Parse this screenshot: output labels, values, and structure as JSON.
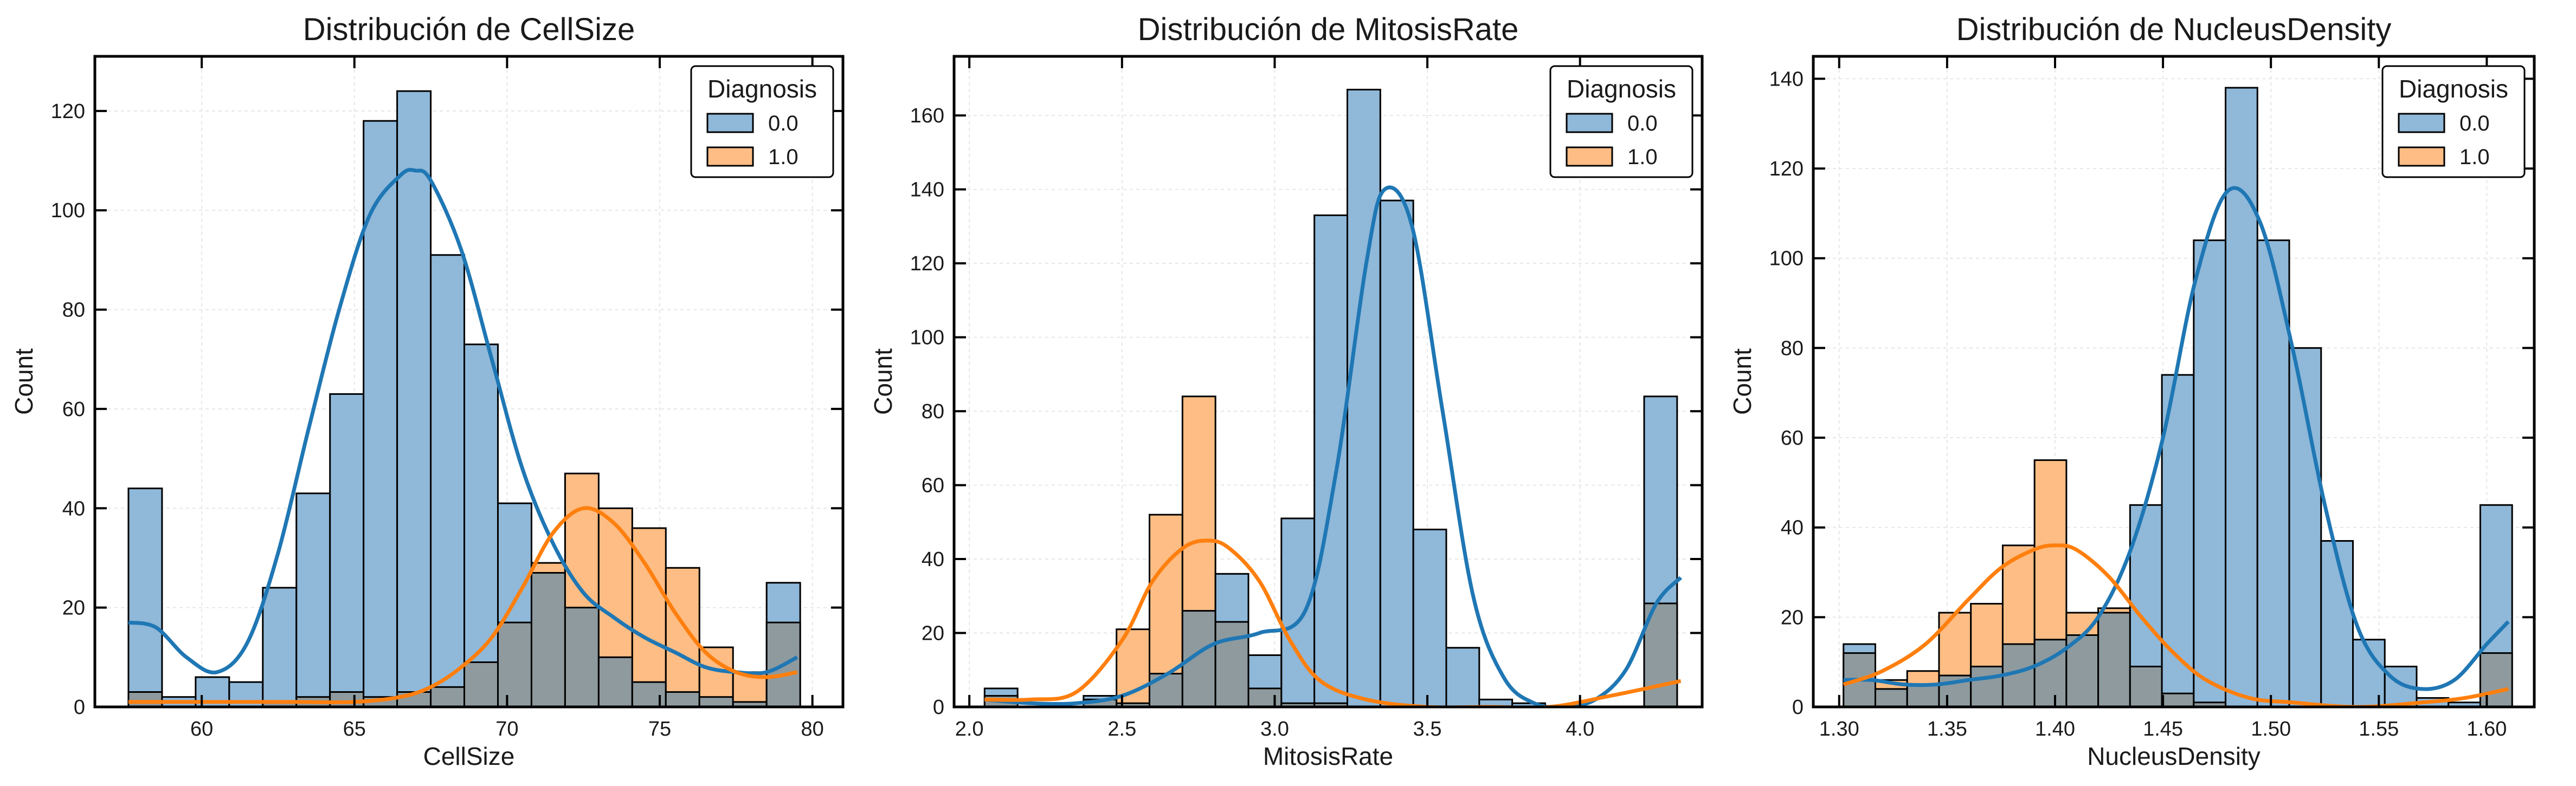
{
  "colors": {
    "class0_fill": "#8fb8d9",
    "class1_fill": "#fdbd84",
    "overlap_fill": "#8e9a9e",
    "class0_line": "#1f77b4",
    "class1_line": "#ff7f0e",
    "edge": "#000000",
    "grid": "#e6e6e6"
  },
  "chart_data": [
    {
      "type": "histogram",
      "title": "Distribución de CellSize",
      "xlabel": "CellSize",
      "ylabel": "Count",
      "xlim": [
        56.5,
        81
      ],
      "ylim": [
        0,
        131
      ],
      "xticks": [
        60,
        65,
        70,
        75,
        80
      ],
      "yticks": [
        0,
        20,
        40,
        60,
        80,
        100,
        120
      ],
      "grid": true,
      "legend": {
        "title": "Diagnosis",
        "entries": [
          "0.0",
          "1.0"
        ],
        "placement": "top-right"
      },
      "bins": {
        "start": 57.6,
        "width": 1.1,
        "count": 20
      },
      "series": [
        {
          "name": "0.0",
          "values": [
            44,
            2,
            6,
            5,
            24,
            43,
            63,
            118,
            124,
            91,
            73,
            41,
            27,
            20,
            10,
            5,
            3,
            2,
            1,
            25
          ]
        },
        {
          "name": "1.0",
          "values": [
            3,
            0,
            0,
            0,
            1,
            2,
            3,
            2,
            3,
            4,
            9,
            17,
            29,
            47,
            40,
            36,
            28,
            12,
            7,
            17
          ]
        }
      ],
      "kde": [
        {
          "name": "0.0",
          "x": [
            57.6,
            58.5,
            59.5,
            60.5,
            61.5,
            62.5,
            63.5,
            64.5,
            65.5,
            66.5,
            67.0,
            67.5,
            68.5,
            69.5,
            70.5,
            71.5,
            72.5,
            73.5,
            74.5,
            75.5,
            76.5,
            77.5,
            78.5,
            79.5
          ],
          "y": [
            17,
            16,
            10,
            7,
            13,
            31,
            56,
            80,
            99,
            107,
            108,
            106,
            92,
            70,
            48,
            33,
            23,
            18,
            14,
            11,
            8,
            7,
            7,
            10
          ]
        },
        {
          "name": "1.0",
          "x": [
            57.6,
            59.0,
            61.0,
            63.0,
            65.0,
            66.5,
            67.5,
            68.5,
            69.5,
            70.5,
            71.5,
            72.5,
            73.5,
            74.5,
            75.5,
            76.5,
            77.5,
            78.5,
            79.5
          ],
          "y": [
            1,
            1,
            1,
            1,
            1,
            2,
            4,
            8,
            14,
            24,
            35,
            40,
            37,
            29,
            19,
            11,
            7,
            6,
            7
          ]
        }
      ]
    },
    {
      "type": "histogram",
      "title": "Distribución de MitosisRate",
      "xlabel": "MitosisRate",
      "ylabel": "Count",
      "xlim": [
        1.95,
        4.4
      ],
      "ylim": [
        0,
        176
      ],
      "xticks": [
        "2.0",
        "2.5",
        "3.0",
        "3.5",
        "4.0"
      ],
      "yticks": [
        0,
        20,
        40,
        60,
        80,
        100,
        120,
        140,
        160
      ],
      "grid": true,
      "legend": {
        "title": "Diagnosis",
        "entries": [
          "0.0",
          "1.0"
        ],
        "placement": "top-right"
      },
      "bins": {
        "start": 2.05,
        "width": 0.108,
        "count": 21
      },
      "series": [
        {
          "name": "0.0",
          "values": [
            5,
            0,
            0,
            3,
            1,
            9,
            26,
            36,
            14,
            51,
            133,
            167,
            137,
            48,
            16,
            2,
            1,
            0,
            0,
            0,
            84
          ]
        },
        {
          "name": "1.0",
          "values": [
            3,
            0,
            0,
            2,
            21,
            52,
            84,
            23,
            5,
            1,
            1,
            0,
            0,
            0,
            0,
            0,
            0,
            0,
            0,
            0,
            28
          ]
        }
      ],
      "kde": [
        {
          "name": "0.0",
          "x": [
            2.05,
            2.2,
            2.35,
            2.5,
            2.65,
            2.8,
            2.95,
            3.1,
            3.2,
            3.3,
            3.36,
            3.45,
            3.55,
            3.65,
            3.75,
            3.85,
            3.95,
            4.05,
            4.15,
            4.25,
            4.33
          ],
          "y": [
            2,
            1,
            1,
            3,
            9,
            17,
            20,
            26,
            63,
            120,
            140,
            130,
            80,
            30,
            8,
            1,
            0,
            2,
            10,
            28,
            35
          ]
        },
        {
          "name": "1.0",
          "x": [
            2.05,
            2.2,
            2.35,
            2.5,
            2.6,
            2.7,
            2.78,
            2.85,
            2.95,
            3.05,
            3.15,
            3.3,
            3.5,
            3.7,
            3.9,
            4.1,
            4.33
          ],
          "y": [
            2,
            2,
            4,
            18,
            34,
            43,
            45,
            43,
            34,
            18,
            7,
            2,
            0,
            0,
            0,
            3,
            7
          ]
        }
      ]
    },
    {
      "type": "histogram",
      "title": "Distribución de NucleusDensity",
      "xlabel": "NucleusDensity",
      "ylabel": "Count",
      "xlim": [
        1.288,
        1.622
      ],
      "ylim": [
        0,
        145
      ],
      "xticks": [
        "1.30",
        "1.35",
        "1.40",
        "1.45",
        "1.50",
        "1.55",
        "1.60"
      ],
      "yticks": [
        0,
        20,
        40,
        60,
        80,
        100,
        120,
        140
      ],
      "grid": true,
      "legend": {
        "title": "Diagnosis",
        "entries": [
          "0.0",
          "1.0"
        ],
        "placement": "top-right"
      },
      "bins": {
        "start": 1.302,
        "width": 0.01475,
        "count": 21
      },
      "series": [
        {
          "name": "0.0",
          "values": [
            14,
            4,
            5,
            7,
            9,
            14,
            15,
            16,
            21,
            45,
            74,
            104,
            138,
            104,
            80,
            37,
            15,
            9,
            2,
            1,
            45
          ]
        },
        {
          "name": "1.0",
          "values": [
            12,
            6,
            8,
            21,
            23,
            36,
            55,
            21,
            22,
            9,
            3,
            1,
            0,
            0,
            0,
            0,
            0,
            0,
            0,
            0,
            12
          ]
        }
      ],
      "kde": [
        {
          "name": "0.0",
          "x": [
            1.302,
            1.315,
            1.33,
            1.345,
            1.36,
            1.375,
            1.39,
            1.405,
            1.42,
            1.435,
            1.45,
            1.465,
            1.48,
            1.495,
            1.51,
            1.525,
            1.54,
            1.555,
            1.57,
            1.585,
            1.6,
            1.61
          ],
          "y": [
            6,
            6,
            5,
            5,
            6,
            7,
            9,
            13,
            20,
            35,
            60,
            95,
            115,
            108,
            80,
            45,
            18,
            7,
            4,
            6,
            14,
            19
          ]
        },
        {
          "name": "1.0",
          "x": [
            1.302,
            1.32,
            1.34,
            1.36,
            1.375,
            1.39,
            1.4,
            1.41,
            1.425,
            1.44,
            1.455,
            1.47,
            1.49,
            1.51,
            1.54,
            1.57,
            1.59,
            1.61
          ],
          "y": [
            5,
            8,
            14,
            24,
            31,
            35,
            36,
            35,
            29,
            20,
            12,
            6,
            2,
            1,
            0,
            1,
            2,
            4
          ]
        }
      ]
    }
  ]
}
